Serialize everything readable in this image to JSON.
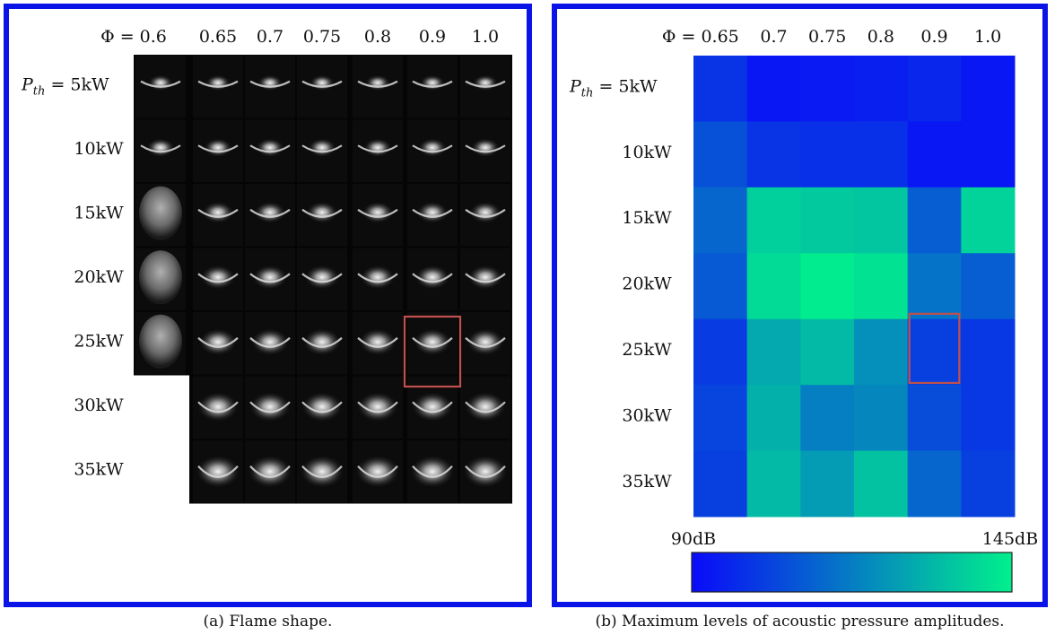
{
  "panel_a": {
    "caption": "(a) Flame shape.",
    "phi_prefix": "Φ = ",
    "phi": [
      "0.6",
      "0.65",
      "0.7",
      "0.75",
      "0.8",
      "0.9",
      "1.0"
    ],
    "p_prefix": "P",
    "p_sub": "th",
    "p_eq": " = ",
    "rows": [
      "5kW",
      "10kW",
      "15kW",
      "20kW",
      "25kW",
      "30kW",
      "35kW"
    ]
  },
  "panel_b": {
    "caption": "(b) Maximum levels of acoustic pressure amplitudes.",
    "colorbar_min": "90dB",
    "colorbar_max": "145dB"
  },
  "colors": {
    "border": "#0a14e6",
    "highlight": "#c0504d",
    "cmap_low": "#0a0afa",
    "cmap_high": "#00f08c"
  },
  "chart_data": [
    {
      "type": "table",
      "title": "",
      "columns_phi": [
        "0.6",
        "0.65",
        "0.7",
        "0.75",
        "0.8",
        "0.9",
        "1.0"
      ],
      "rows": [
        "5kW",
        "10kW",
        "15kW",
        "20kW",
        "25kW",
        "30kW",
        "35kW"
      ],
      "cells_present": [
        [
          true,
          true,
          true,
          true,
          true,
          true,
          true
        ],
        [
          true,
          true,
          true,
          true,
          true,
          true,
          true
        ],
        [
          true,
          true,
          true,
          true,
          true,
          true,
          true
        ],
        [
          true,
          true,
          true,
          true,
          true,
          true,
          true
        ],
        [
          true,
          true,
          true,
          true,
          true,
          true,
          true
        ],
        [
          false,
          true,
          true,
          true,
          true,
          true,
          true
        ],
        [
          false,
          true,
          true,
          true,
          true,
          true,
          true
        ]
      ],
      "highlight": {
        "row": "25kW",
        "phi": "0.9"
      }
    },
    {
      "type": "heatmap",
      "x": [
        "0.65",
        "0.7",
        "0.75",
        "0.8",
        "0.9",
        "1.0"
      ],
      "y": [
        "5kW",
        "10kW",
        "15kW",
        "20kW",
        "25kW",
        "30kW",
        "35kW"
      ],
      "xlabel": "Φ",
      "ylabel": "P_th",
      "colorbar": {
        "min": 90,
        "max": 145,
        "unit": "dB"
      },
      "values": [
        [
          100,
          93,
          94,
          95,
          97,
          93
        ],
        [
          107,
          100,
          99,
          99,
          93,
          93
        ],
        [
          112,
          137,
          136,
          135,
          110,
          138
        ],
        [
          109,
          140,
          144,
          142,
          115,
          110
        ],
        [
          102,
          128,
          132,
          122,
          103,
          101
        ],
        [
          104,
          130,
          118,
          120,
          106,
          101
        ],
        [
          103,
          132,
          125,
          134,
          112,
          103
        ]
      ],
      "highlight": {
        "row": "25kW",
        "x": "0.9"
      }
    }
  ]
}
